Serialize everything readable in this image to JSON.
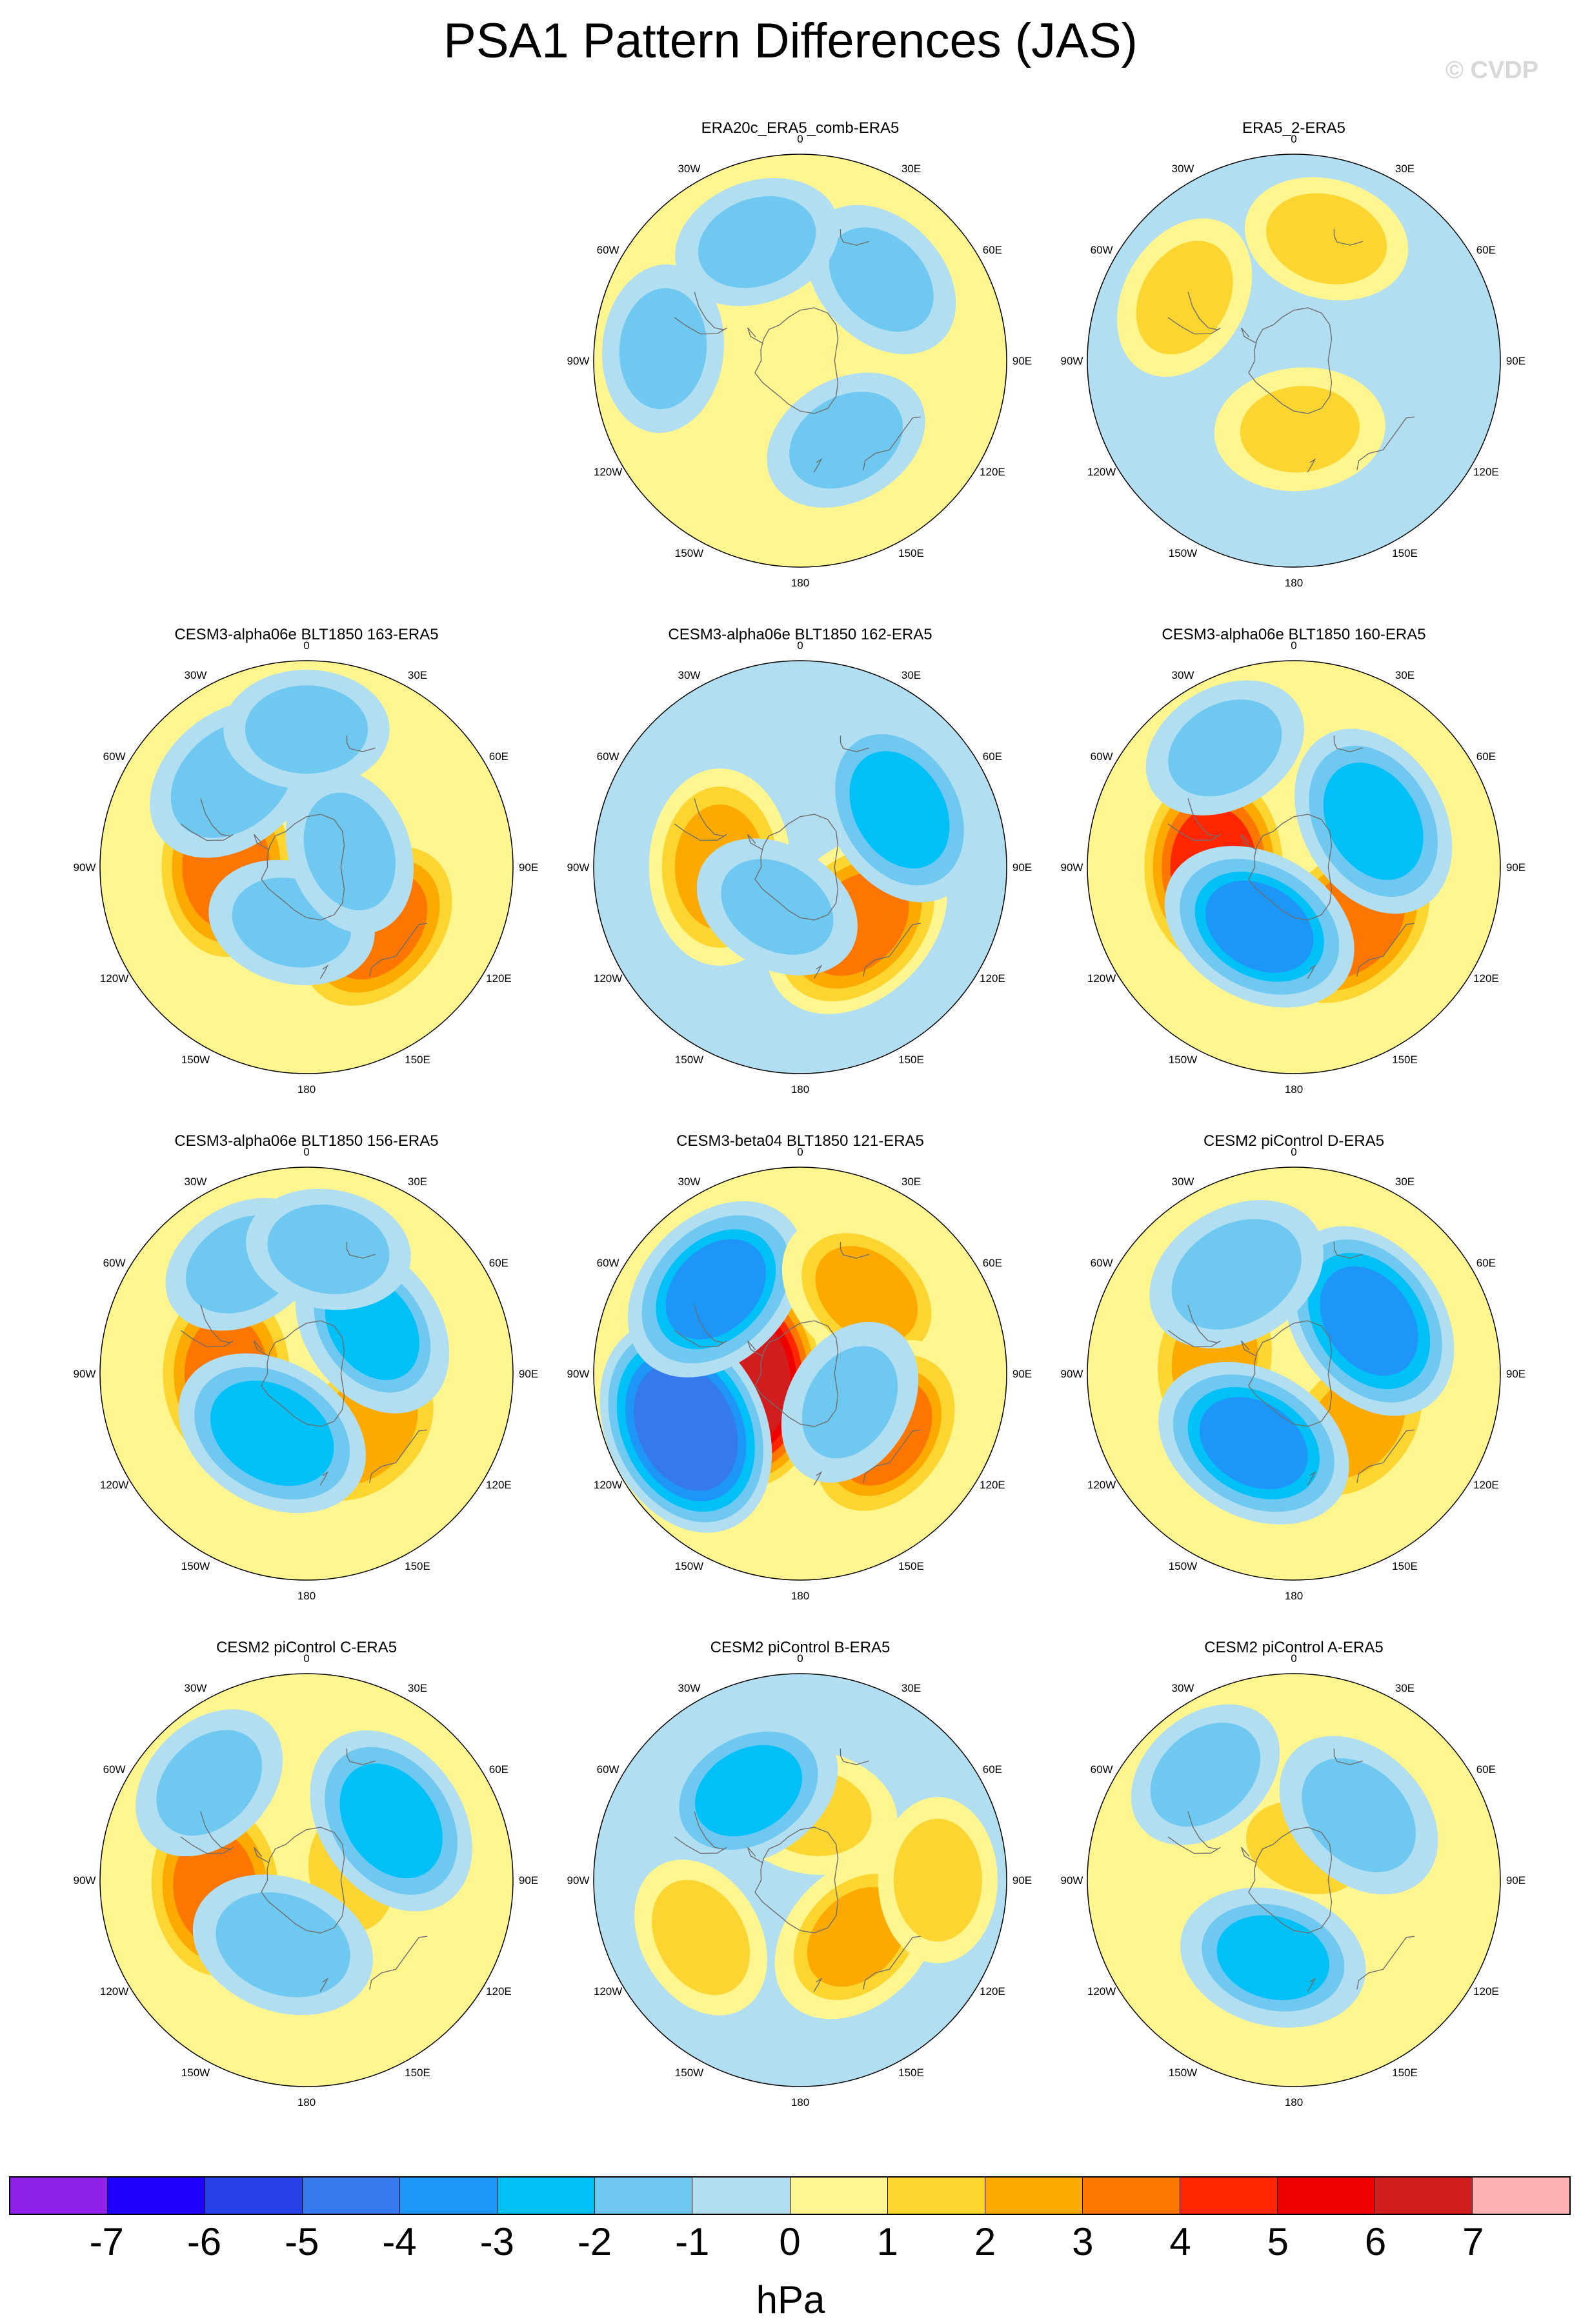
{
  "title": "PSA1 Pattern Differences (JAS)",
  "credit": "© CVDP",
  "colors": {
    "neg": [
      "#8f20e8",
      "#2000ff",
      "#2840e8",
      "#3579ed",
      "#1e96f8",
      "#00c0f8",
      "#6fc8f0",
      "#b2def2"
    ],
    "pos": [
      "#fff68f",
      "#fdd530",
      "#fcaa00",
      "#fc7600",
      "#ff2600",
      "#ee0000",
      "#d11d1d",
      "#ffb0b0"
    ],
    "coast": "#6e6e6e"
  },
  "lon_labels": [
    "0",
    "30E",
    "60E",
    "90E",
    "120E",
    "150E",
    "180",
    "150W",
    "120W",
    "90W",
    "60W",
    "30W"
  ],
  "chart_data": {
    "type": "polar-contour",
    "levels": [
      -7,
      -6,
      -5,
      -4,
      -3,
      -2,
      -1,
      0,
      1,
      2,
      3,
      4,
      5,
      6,
      7
    ],
    "units": "hPa",
    "panels": [
      {
        "title": "ERA20c_ERA5_comb-ERA5",
        "background": 0.3,
        "features": [
          {
            "lat": -40,
            "lon": 45,
            "peak": -1.3
          },
          {
            "lat": -50,
            "lon": 150,
            "peak": -1.2
          },
          {
            "lat": -35,
            "lon": -20,
            "peak": -1.2
          },
          {
            "lat": -30,
            "lon": -85,
            "peak": -1.2
          }
        ]
      },
      {
        "title": "ERA5_2-ERA5",
        "background": -0.4,
        "features": [
          {
            "lat": -60,
            "lon": 175,
            "peak": 1.3
          },
          {
            "lat": -35,
            "lon": -60,
            "peak": 1.2
          },
          {
            "lat": -35,
            "lon": 15,
            "peak": 1.1
          }
        ]
      },
      {
        "title": "CESM3-alpha06e BLT1850 163-ERA5",
        "background": 0.3,
        "features": [
          {
            "lat": -55,
            "lon": -90,
            "peak": 3.7
          },
          {
            "lat": -50,
            "lon": 130,
            "peak": 3.6
          },
          {
            "lat": -40,
            "lon": -40,
            "peak": -2.0
          },
          {
            "lat": -65,
            "lon": -165,
            "peak": -1.2
          },
          {
            "lat": -70,
            "lon": 70,
            "peak": -1.2
          },
          {
            "lat": -30,
            "lon": 0,
            "peak": -1.1
          }
        ]
      },
      {
        "title": "CESM3-alpha06e BLT1850 162-ERA5",
        "background": -0.4,
        "features": [
          {
            "lat": -55,
            "lon": -90,
            "peak": 2.8
          },
          {
            "lat": -55,
            "lon": 135,
            "peak": 3.6
          },
          {
            "lat": -40,
            "lon": 60,
            "peak": -2.8
          },
          {
            "lat": -70,
            "lon": -150,
            "peak": -1.3
          }
        ]
      },
      {
        "title": "CESM3-alpha06e BLT1850 160-ERA5",
        "background": 0.3,
        "features": [
          {
            "lat": -55,
            "lon": -90,
            "peak": 4.5
          },
          {
            "lat": -55,
            "lon": 135,
            "peak": 3.8
          },
          {
            "lat": -50,
            "lon": 60,
            "peak": -2.8
          },
          {
            "lat": -60,
            "lon": -150,
            "peak": -3.2
          },
          {
            "lat": -30,
            "lon": -30,
            "peak": -1.2
          }
        ]
      },
      {
        "title": "CESM3-alpha06e BLT1850 156-ERA5",
        "background": 0.35,
        "features": [
          {
            "lat": -55,
            "lon": -90,
            "peak": 3.5
          },
          {
            "lat": -55,
            "lon": 135,
            "peak": 2.8
          },
          {
            "lat": -55,
            "lon": 55,
            "peak": -2.1
          },
          {
            "lat": -60,
            "lon": -150,
            "peak": -3.0
          },
          {
            "lat": -35,
            "lon": -30,
            "peak": -1.1
          },
          {
            "lat": -35,
            "lon": 10,
            "peak": -1.1
          }
        ]
      },
      {
        "title": "CESM3-beta04 BLT1850 121-ERA5",
        "background": 0.35,
        "features": [
          {
            "lat": -65,
            "lon": -95,
            "peak": 6.5
          },
          {
            "lat": -35,
            "lon": -115,
            "peak": -5.0
          },
          {
            "lat": -38,
            "lon": -45,
            "peak": -3.2
          },
          {
            "lat": -45,
            "lon": 40,
            "peak": 2.2
          },
          {
            "lat": -45,
            "lon": 125,
            "peak": 3.2
          },
          {
            "lat": -65,
            "lon": 120,
            "peak": -1.3
          }
        ]
      },
      {
        "title": "CESM2 piControl D-ERA5",
        "background": 0.3,
        "features": [
          {
            "lat": -55,
            "lon": -80,
            "peak": 2.6
          },
          {
            "lat": -55,
            "lon": 130,
            "peak": 2.6
          },
          {
            "lat": -50,
            "lon": 55,
            "peak": -3.6
          },
          {
            "lat": -55,
            "lon": -150,
            "peak": -3.3
          },
          {
            "lat": -40,
            "lon": -30,
            "peak": -2.0
          }
        ]
      },
      {
        "title": "CESM2 piControl C-ERA5",
        "background": 0.3,
        "features": [
          {
            "lat": -50,
            "lon": -95,
            "peak": 3.5
          },
          {
            "lat": -70,
            "lon": 80,
            "peak": 1.4
          },
          {
            "lat": -45,
            "lon": 55,
            "peak": -2.8
          },
          {
            "lat": -60,
            "lon": -160,
            "peak": -2.0
          },
          {
            "lat": -30,
            "lon": -45,
            "peak": -1.2
          }
        ]
      },
      {
        "title": "CESM2 piControl B-ERA5",
        "background": -0.4,
        "features": [
          {
            "lat": -60,
            "lon": 10,
            "peak": 1.3
          },
          {
            "lat": -55,
            "lon": 135,
            "peak": 2.2
          },
          {
            "lat": -45,
            "lon": -30,
            "peak": -2.3
          },
          {
            "lat": -30,
            "lon": 90,
            "peak": 1.1
          },
          {
            "lat": -40,
            "lon": -120,
            "peak": 1.1
          }
        ]
      },
      {
        "title": "CESM2 piControl A-ERA5",
        "background": 0.3,
        "features": [
          {
            "lat": -75,
            "lon": 20,
            "peak": 1.6
          },
          {
            "lat": -50,
            "lon": 45,
            "peak": -1.8
          },
          {
            "lat": -55,
            "lon": -165,
            "peak": -2.2
          },
          {
            "lat": -30,
            "lon": -40,
            "peak": -1.1
          }
        ]
      }
    ]
  }
}
